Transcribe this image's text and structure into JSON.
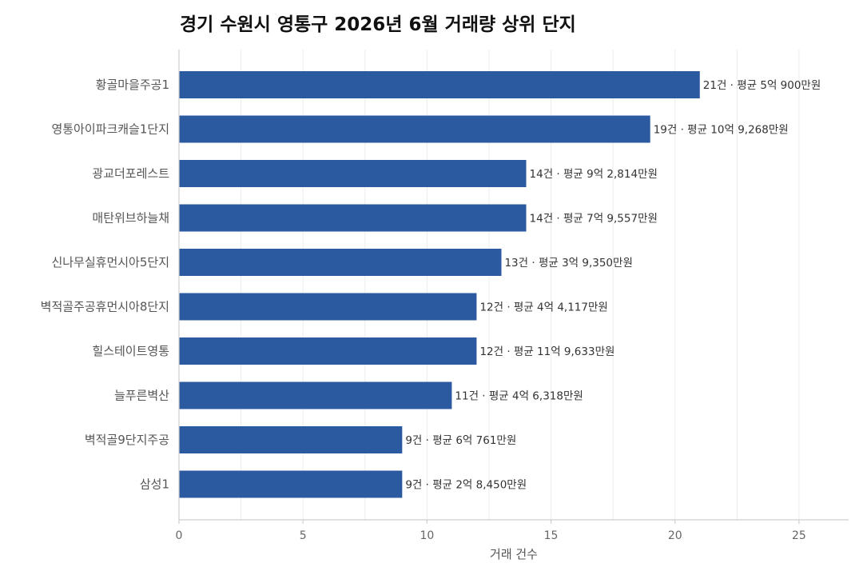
{
  "chart_data": {
    "type": "bar",
    "orientation": "horizontal",
    "title": "경기 수원시 영통구 2026년 6월 거래량 상위 단지",
    "xlabel": "거래 건수",
    "ylabel": "",
    "xlim": [
      0,
      27
    ],
    "xticks": [
      0,
      5,
      10,
      15,
      20,
      25
    ],
    "grid": true,
    "bar_color": "#2c5aa0",
    "categories": [
      "황골마을주공1",
      "영통아이파크캐슬1단지",
      "광교더포레스트",
      "매탄위브하늘채",
      "신나무실휴먼시아5단지",
      "벽적골주공휴먼시아8단지",
      "힐스테이트영통",
      "늘푸른벽산",
      "벽적골9단지주공",
      "삼성1"
    ],
    "values": [
      21,
      19,
      14,
      14,
      13,
      12,
      12,
      11,
      9,
      9
    ],
    "data_labels": [
      "21건 · 평균 5억 900만원",
      "19건 · 평균 10억 9,268만원",
      "14건 · 평균 9억 2,814만원",
      "14건 · 평균 7억 9,557만원",
      "13건 · 평균 3억 9,350만원",
      "12건 · 평균 4억 4,117만원",
      "12건 · 평균 11억 9,633만원",
      "11건 · 평균 4억 6,318만원",
      "9건 · 평균 6억 761만원",
      "9건 · 평균 2억 8,450만원"
    ]
  }
}
